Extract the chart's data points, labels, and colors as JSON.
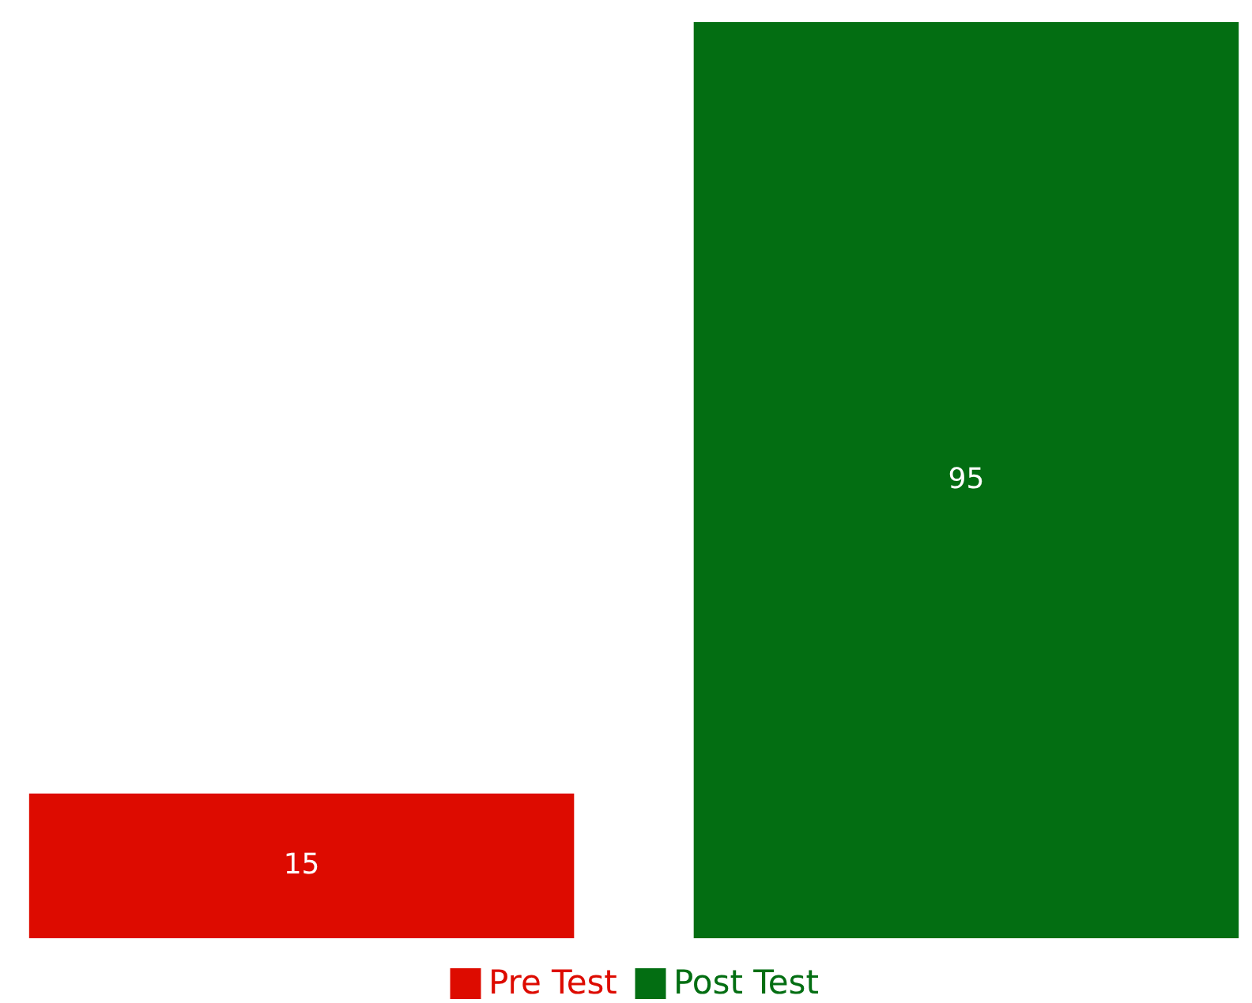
{
  "chart_data": {
    "type": "bar",
    "categories": [
      null,
      null
    ],
    "stacked": true,
    "series": [
      {
        "name": "Pre Test",
        "color": "#dd0b00",
        "values": [
          15,
          null
        ]
      },
      {
        "name": "Post Test",
        "color": "#036e12",
        "values": [
          null,
          95
        ]
      }
    ],
    "data_labels": true,
    "legend": "bottom"
  }
}
